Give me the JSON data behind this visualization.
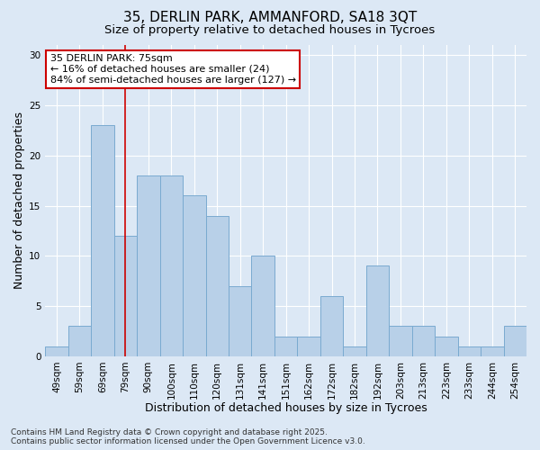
{
  "title_line1": "35, DERLIN PARK, AMMANFORD, SA18 3QT",
  "title_line2": "Size of property relative to detached houses in Tycroes",
  "xlabel": "Distribution of detached houses by size in Tycroes",
  "ylabel": "Number of detached properties",
  "categories": [
    "49sqm",
    "59sqm",
    "69sqm",
    "79sqm",
    "90sqm",
    "100sqm",
    "110sqm",
    "120sqm",
    "131sqm",
    "141sqm",
    "151sqm",
    "162sqm",
    "172sqm",
    "182sqm",
    "192sqm",
    "203sqm",
    "213sqm",
    "223sqm",
    "233sqm",
    "244sqm",
    "254sqm"
  ],
  "values": [
    1,
    3,
    23,
    12,
    18,
    18,
    16,
    14,
    7,
    10,
    2,
    2,
    6,
    1,
    9,
    3,
    3,
    2,
    1,
    1,
    3
  ],
  "bar_color": "#b8d0e8",
  "bar_edge_color": "#7aaad0",
  "bg_color": "#dce8f5",
  "grid_color": "#ffffff",
  "annotation_box_text": "35 DERLIN PARK: 75sqm\n← 16% of detached houses are smaller (24)\n84% of semi-detached houses are larger (127) →",
  "annotation_box_color": "#ffffff",
  "annotation_box_edge": "#cc0000",
  "vline_x": 2.97,
  "vline_color": "#cc0000",
  "footnote": "Contains HM Land Registry data © Crown copyright and database right 2025.\nContains public sector information licensed under the Open Government Licence v3.0.",
  "ylim": [
    0,
    31
  ],
  "yticks": [
    0,
    5,
    10,
    15,
    20,
    25,
    30
  ],
  "title_fontsize": 11,
  "subtitle_fontsize": 9.5,
  "label_fontsize": 9,
  "tick_fontsize": 7.5,
  "annot_fontsize": 8,
  "footnote_fontsize": 6.5
}
